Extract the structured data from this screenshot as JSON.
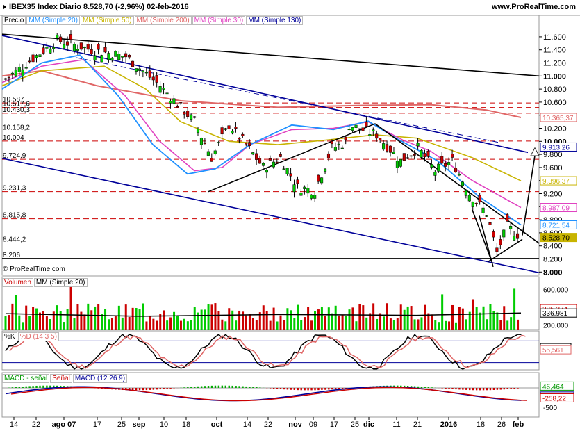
{
  "header": {
    "title": "IBEX35 Index   Diario   8.528,70 (-2,96%)   02-feb-2016",
    "site": "www.ProRealTime.com"
  },
  "legends": {
    "price": [
      {
        "label": "Precio",
        "color": "#000000"
      },
      {
        "label": "MM (Simple 20)",
        "color": "#1e90ff"
      },
      {
        "label": "MM (Simple 50)",
        "color": "#c8b400"
      },
      {
        "label": "MM (Simple 200)",
        "color": "#e06666"
      },
      {
        "label": "MM (Simple 30)",
        "color": "#e040c0"
      },
      {
        "label": "MM (Simple 130)",
        "color": "#000099"
      }
    ],
    "volume": [
      {
        "label": "Volumen",
        "color": "#cc0000"
      },
      {
        "label": "MM (Simple 20)",
        "color": "#000000"
      }
    ],
    "stoch": [
      {
        "label": "%K",
        "color": "#000000"
      },
      {
        "label": "%D (14 3 5)",
        "color": "#e06666"
      }
    ],
    "macd": [
      {
        "label": "MACD - señal",
        "color": "#009900"
      },
      {
        "label": "Señal",
        "color": "#cc0000"
      },
      {
        "label": "MACD (12 26 9)",
        "color": "#000099"
      }
    ]
  },
  "copyright": "© ProRealTime.com",
  "chart_data": {
    "type": "candlestick",
    "price_axis": [
      "11.600",
      "11.400",
      "11.200",
      "11.000",
      "10.800",
      "10.600",
      "10.400",
      "10.200",
      "10.000",
      "9.800",
      "9.600",
      "9.400",
      "9.200",
      "9.000",
      "8.800",
      "8.600",
      "8.400",
      "8.200",
      "8.000"
    ],
    "price_range": [
      7950,
      11780
    ],
    "horizontal_levels": [
      {
        "label": "10.587",
        "value": 10587
      },
      {
        "label": "10.517,6",
        "value": 10517.6
      },
      {
        "label": "10.430,3",
        "value": 10430.3
      },
      {
        "label": "10.158,2",
        "value": 10158.2
      },
      {
        "label": "10.004",
        "value": 10004
      },
      {
        "label": "9.724,9",
        "value": 9724.9
      },
      {
        "label": "9.231,3",
        "value": 9231.3
      },
      {
        "label": "8.815,8",
        "value": 8815.8
      },
      {
        "label": "8.444,2",
        "value": 8444.2
      },
      {
        "label": "8.206",
        "value": 8206
      }
    ],
    "price_tags": [
      {
        "label": "10.365,37",
        "value": 10365.37,
        "color": "#e06666"
      },
      {
        "label": "9.913,26",
        "value": 9913.26,
        "color": "#000099"
      },
      {
        "label": "9.396,37",
        "value": 9396.37,
        "color": "#c8b400"
      },
      {
        "label": "8.987,09",
        "value": 8987.09,
        "color": "#e040c0"
      },
      {
        "label": "8.721,54",
        "value": 8721.54,
        "color": "#1e90ff"
      },
      {
        "label": "8.528,70",
        "value": 8528.7,
        "color": "#c8b400",
        "fill": true
      }
    ],
    "x_labels": [
      "14",
      "22",
      "ago 07",
      "17",
      "25",
      "sep",
      "10",
      "18",
      "oct",
      "14",
      "22",
      "nov",
      "09",
      "17",
      "25",
      "dic",
      "11",
      "21",
      "2016",
      "18",
      "26",
      "feb"
    ],
    "volume_axis": [
      "600.000",
      "400.000",
      "200.000"
    ],
    "volume_range": [
      150000,
      700000
    ],
    "volume_tags": [
      {
        "label": "385.374",
        "value": 385374,
        "color": "#cc0000"
      },
      {
        "label": "336.981",
        "value": 336981,
        "color": "#000000"
      }
    ],
    "stoch_tags": [
      {
        "label": "61,365",
        "value": 61.365,
        "color": "#000000"
      },
      {
        "label": "55,561",
        "value": 55.561,
        "color": "#e06666"
      }
    ],
    "macd_axis": [
      "-500"
    ],
    "macd_tags": [
      {
        "label": "46,464",
        "value": 46.464,
        "color": "#009900"
      },
      {
        "label": "-211,76",
        "value": -211.76,
        "color": "#000099"
      },
      {
        "label": "-258,22",
        "value": -258.22,
        "color": "#cc0000"
      }
    ]
  }
}
